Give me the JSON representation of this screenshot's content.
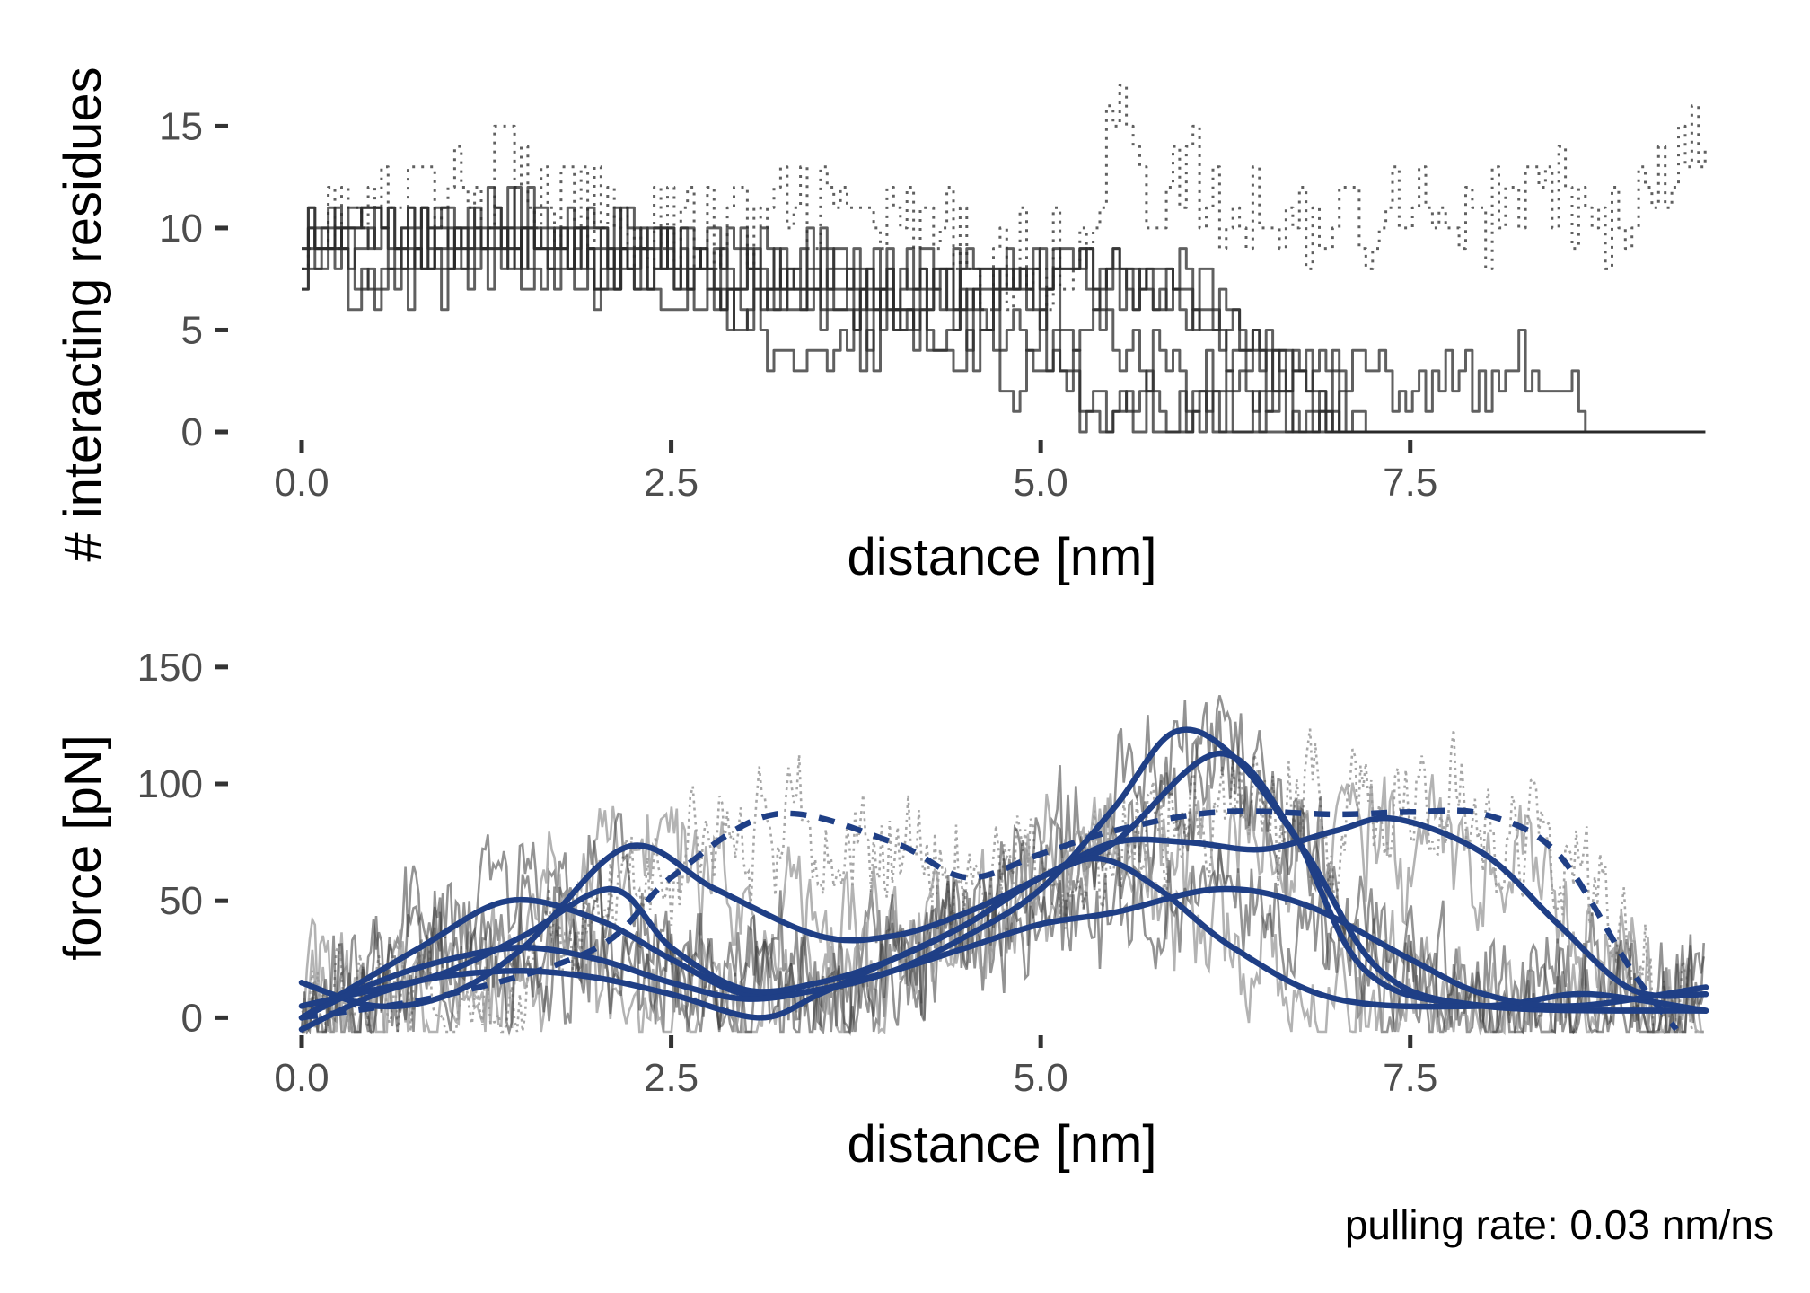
{
  "caption": "pulling rate: 0.03 nm/ns",
  "colors": {
    "trace": "#2b2b2b",
    "smooth": "#1f3f86",
    "raw_force": "#9a9a9a",
    "tick": "#4d4d4d"
  },
  "chart_data": [
    {
      "type": "line",
      "panel": "top",
      "xlabel": "distance [nm]",
      "ylabel": "# interacting residues",
      "xlim": [
        0,
        9.5
      ],
      "ylim": [
        0,
        17
      ],
      "x_ticks": [
        0.0,
        2.5,
        5.0,
        7.5
      ],
      "x_tick_labels": [
        "0.0",
        "2.5",
        "5.0",
        "7.5"
      ],
      "y_ticks": [
        0,
        5,
        10,
        15
      ],
      "y_tick_labels": [
        "0",
        "5",
        "10",
        "15"
      ],
      "grid": false,
      "series": [
        {
          "style": "dotted",
          "points": [
            [
              0,
              10
            ],
            [
              0.5,
              11
            ],
            [
              1,
              12
            ],
            [
              1.3,
              13
            ],
            [
              1.7,
              11
            ],
            [
              2,
              11
            ],
            [
              2.5,
              10
            ],
            [
              3,
              10
            ],
            [
              3.5,
              11
            ],
            [
              4,
              10
            ],
            [
              4.5,
              9
            ],
            [
              5,
              8
            ],
            [
              5.3,
              10
            ],
            [
              5.5,
              16
            ],
            [
              5.7,
              11
            ],
            [
              6,
              13
            ],
            [
              6.2,
              10
            ],
            [
              6.5,
              11
            ],
            [
              7,
              10
            ],
            [
              7.5,
              12
            ],
            [
              8,
              10
            ],
            [
              8.3,
              12
            ],
            [
              8.6,
              11
            ],
            [
              9,
              10
            ],
            [
              9.4,
              14
            ]
          ]
        },
        {
          "style": "solid",
          "points": [
            [
              0,
              9
            ],
            [
              0.5,
              10
            ],
            [
              1,
              9
            ],
            [
              1.5,
              10
            ],
            [
              2,
              9
            ],
            [
              2.5,
              8
            ],
            [
              3,
              8
            ],
            [
              3.5,
              7
            ],
            [
              4,
              6
            ],
            [
              4.5,
              7
            ],
            [
              5,
              7
            ],
            [
              5.3,
              5
            ],
            [
              5.5,
              4
            ],
            [
              5.8,
              3
            ],
            [
              6.2,
              2
            ],
            [
              6.6,
              1
            ],
            [
              7,
              0
            ],
            [
              9.5,
              0
            ]
          ]
        },
        {
          "style": "solid",
          "points": [
            [
              0,
              11
            ],
            [
              0.5,
              10
            ],
            [
              1,
              9
            ],
            [
              1.5,
              9
            ],
            [
              2,
              8
            ],
            [
              2.5,
              9
            ],
            [
              3,
              7
            ],
            [
              3.5,
              6
            ],
            [
              4,
              5
            ],
            [
              4.5,
              6
            ],
            [
              5,
              5
            ],
            [
              5.2,
              3
            ],
            [
              5.4,
              1
            ],
            [
              6,
              1
            ],
            [
              6.5,
              1
            ],
            [
              7,
              0
            ],
            [
              9.5,
              0
            ]
          ]
        },
        {
          "style": "solid",
          "points": [
            [
              0,
              10
            ],
            [
              0.5,
              8
            ],
            [
              1,
              9
            ],
            [
              1.5,
              8
            ],
            [
              2,
              8
            ],
            [
              2.5,
              7
            ],
            [
              3,
              6
            ],
            [
              3.3,
              3
            ],
            [
              3.5,
              4
            ],
            [
              4,
              5
            ],
            [
              4.5,
              4
            ],
            [
              4.8,
              3
            ],
            [
              5.1,
              3
            ],
            [
              5.3,
              1
            ],
            [
              6.3,
              0
            ],
            [
              9.5,
              0
            ]
          ]
        },
        {
          "style": "solid",
          "points": [
            [
              0,
              9
            ],
            [
              0.5,
              7
            ],
            [
              1,
              8
            ],
            [
              1.5,
              9
            ],
            [
              2,
              8
            ],
            [
              2.5,
              8
            ],
            [
              3,
              6
            ],
            [
              3.5,
              7
            ],
            [
              4,
              7
            ],
            [
              4.5,
              8
            ],
            [
              5,
              8
            ],
            [
              5.5,
              7
            ],
            [
              6,
              7
            ],
            [
              6.2,
              5
            ],
            [
              6.5,
              3
            ],
            [
              7,
              3
            ],
            [
              7.5,
              2
            ],
            [
              8,
              3
            ],
            [
              8.5,
              3
            ],
            [
              8.7,
              0
            ],
            [
              9.5,
              0
            ]
          ]
        },
        {
          "style": "solid",
          "points": [
            [
              0,
              10
            ],
            [
              0.5,
              9
            ],
            [
              1,
              11
            ],
            [
              1.5,
              10
            ],
            [
              2,
              9
            ],
            [
              2.5,
              9
            ],
            [
              3,
              8
            ],
            [
              3.5,
              8
            ],
            [
              4,
              7
            ],
            [
              4.5,
              7
            ],
            [
              5,
              7
            ],
            [
              5.5,
              8
            ],
            [
              6,
              7
            ],
            [
              6.3,
              5
            ],
            [
              6.7,
              3
            ],
            [
              7,
              1
            ],
            [
              7.2,
              0
            ],
            [
              9.5,
              0
            ]
          ]
        },
        {
          "style": "solid",
          "points": [
            [
              0,
              11
            ],
            [
              0.5,
              10
            ],
            [
              1,
              10
            ],
            [
              1.5,
              11
            ],
            [
              2,
              10
            ],
            [
              2.5,
              9
            ],
            [
              3,
              9
            ],
            [
              3.5,
              8
            ],
            [
              4,
              8
            ],
            [
              4.5,
              7
            ],
            [
              5,
              8
            ],
            [
              5.5,
              7
            ],
            [
              6,
              6
            ],
            [
              6.3,
              4
            ],
            [
              6.8,
              2
            ],
            [
              7,
              1
            ],
            [
              7.1,
              0
            ],
            [
              9.5,
              0
            ]
          ]
        }
      ]
    },
    {
      "type": "line",
      "panel": "bottom",
      "xlabel": "distance [nm]",
      "ylabel": "force [pN]",
      "xlim": [
        0,
        9.5
      ],
      "ylim": [
        -6,
        158
      ],
      "x_ticks": [
        0.0,
        2.5,
        5.0,
        7.5
      ],
      "x_tick_labels": [
        "0.0",
        "2.5",
        "5.0",
        "7.5"
      ],
      "y_ticks": [
        0,
        50,
        100,
        150
      ],
      "y_tick_labels": [
        "0",
        "50",
        "100",
        "150"
      ],
      "grid": false,
      "smoothed_series": [
        {
          "style": "dashed",
          "points": [
            [
              0,
              0
            ],
            [
              1,
              10
            ],
            [
              2,
              30
            ],
            [
              2.5,
              60
            ],
            [
              3.2,
              87
            ],
            [
              4,
              75
            ],
            [
              4.5,
              60
            ],
            [
              5,
              70
            ],
            [
              5.5,
              80
            ],
            [
              6.2,
              88
            ],
            [
              7,
              87
            ],
            [
              7.5,
              88
            ],
            [
              8,
              87
            ],
            [
              8.5,
              70
            ],
            [
              9,
              20
            ],
            [
              9.3,
              -5
            ]
          ]
        },
        {
          "style": "solid",
          "points": [
            [
              0,
              0
            ],
            [
              0.8,
              30
            ],
            [
              1.4,
              50
            ],
            [
              2,
              42
            ],
            [
              2.5,
              25
            ],
            [
              3,
              10
            ],
            [
              3.5,
              12
            ],
            [
              4,
              20
            ],
            [
              4.5,
              35
            ],
            [
              5,
              55
            ],
            [
              5.5,
              90
            ],
            [
              5.9,
              122
            ],
            [
              6.3,
              112
            ],
            [
              6.8,
              70
            ],
            [
              7.3,
              20
            ],
            [
              8,
              5
            ],
            [
              9.5,
              3
            ]
          ]
        },
        {
          "style": "solid",
          "points": [
            [
              0,
              15
            ],
            [
              0.5,
              5
            ],
            [
              1,
              10
            ],
            [
              1.5,
              30
            ],
            [
              2.2,
              73
            ],
            [
              2.8,
              55
            ],
            [
              3.5,
              35
            ],
            [
              4,
              35
            ],
            [
              4.5,
              45
            ],
            [
              5,
              60
            ],
            [
              5.5,
              75
            ],
            [
              6,
              75
            ],
            [
              6.5,
              72
            ],
            [
              7,
              80
            ],
            [
              7.4,
              85
            ],
            [
              8,
              70
            ],
            [
              8.5,
              40
            ],
            [
              9,
              12
            ],
            [
              9.5,
              10
            ]
          ]
        },
        {
          "style": "solid",
          "points": [
            [
              0,
              -5
            ],
            [
              0.5,
              10
            ],
            [
              1,
              20
            ],
            [
              1.5,
              35
            ],
            [
              2.1,
              55
            ],
            [
              2.5,
              30
            ],
            [
              3,
              12
            ],
            [
              3.5,
              15
            ],
            [
              4,
              25
            ],
            [
              4.5,
              40
            ],
            [
              5,
              60
            ],
            [
              5.5,
              75
            ],
            [
              6.2,
              113
            ],
            [
              6.7,
              80
            ],
            [
              7.2,
              20
            ],
            [
              8,
              5
            ],
            [
              9.5,
              3
            ]
          ]
        },
        {
          "style": "solid",
          "points": [
            [
              0,
              5
            ],
            [
              0.5,
              12
            ],
            [
              1,
              18
            ],
            [
              1.5,
              20
            ],
            [
              2,
              17
            ],
            [
              2.5,
              10
            ],
            [
              3.1,
              0
            ],
            [
              3.5,
              10
            ],
            [
              4,
              25
            ],
            [
              4.5,
              40
            ],
            [
              5,
              60
            ],
            [
              5.4,
              68
            ],
            [
              5.8,
              55
            ],
            [
              6.3,
              30
            ],
            [
              7,
              8
            ],
            [
              8,
              5
            ],
            [
              8.6,
              10
            ],
            [
              9,
              8
            ],
            [
              9.5,
              3
            ]
          ]
        },
        {
          "style": "solid",
          "points": [
            [
              0,
              0
            ],
            [
              0.5,
              15
            ],
            [
              1,
              25
            ],
            [
              1.5,
              30
            ],
            [
              2,
              25
            ],
            [
              2.5,
              15
            ],
            [
              3,
              8
            ],
            [
              3.5,
              12
            ],
            [
              4,
              20
            ],
            [
              4.5,
              30
            ],
            [
              5,
              40
            ],
            [
              5.5,
              45
            ],
            [
              6.2,
              55
            ],
            [
              6.8,
              48
            ],
            [
              7.5,
              25
            ],
            [
              8,
              10
            ],
            [
              8.6,
              5
            ],
            [
              9.5,
              13
            ]
          ]
        }
      ]
    }
  ]
}
